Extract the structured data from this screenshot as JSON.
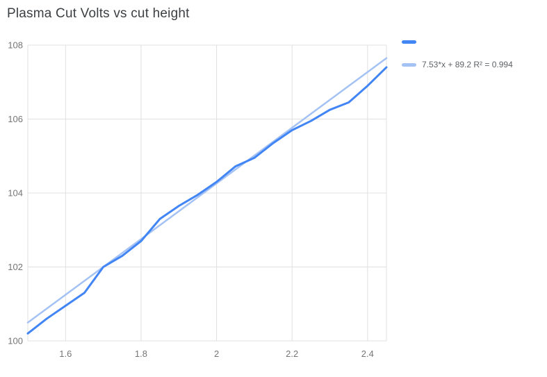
{
  "chart_data": {
    "type": "line",
    "title": "Plasma Cut Volts vs cut height",
    "xlabel": "",
    "ylabel": "",
    "x": [
      1.5,
      1.55,
      1.6,
      1.65,
      1.7,
      1.75,
      1.8,
      1.85,
      1.9,
      1.95,
      2.0,
      2.05,
      2.1,
      2.15,
      2.2,
      2.25,
      2.3,
      2.35,
      2.4,
      2.45
    ],
    "series": [
      {
        "name": "",
        "color": "#4285f4",
        "values": [
          100.2,
          100.6,
          100.95,
          101.3,
          102.0,
          102.3,
          102.7,
          103.3,
          103.65,
          103.95,
          104.3,
          104.72,
          104.95,
          105.35,
          105.7,
          105.95,
          106.25,
          106.45,
          106.9,
          107.4
        ]
      }
    ],
    "trendline": {
      "slope": 7.53,
      "intercept": 89.2,
      "r2": 0.994,
      "label": "7.53*x + 89.2 R² = 0.994",
      "color": "#a4c2f4"
    },
    "xlim": [
      1.5,
      2.45
    ],
    "ylim": [
      100,
      108
    ],
    "x_tick_values": [
      1.6,
      1.8,
      2.0,
      2.2,
      2.4
    ],
    "x_tick_labels": [
      "1.6",
      "1.8",
      "2",
      "2.2",
      "2.4"
    ],
    "y_tick_values": [
      100,
      102,
      104,
      106,
      108
    ],
    "y_tick_labels": [
      "100",
      "102",
      "104",
      "106",
      "108"
    ],
    "grid": true,
    "grid_color": "#e0e0e0",
    "axis_label_color": "#757575",
    "legend_position": "right"
  },
  "legend": {
    "items": [
      {
        "label": "",
        "color": "#4285f4"
      },
      {
        "label": "7.53*x + 89.2 R² = 0.994",
        "color": "#a4c2f4"
      }
    ]
  }
}
